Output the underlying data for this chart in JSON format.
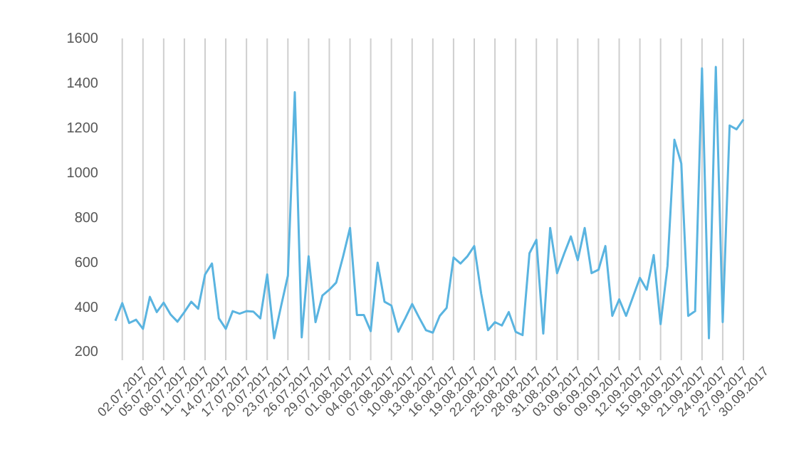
{
  "chart_data": {
    "type": "line",
    "categories": [
      null,
      "02.07.2017",
      null,
      null,
      "05.07.2017",
      null,
      null,
      "08.07.2017",
      null,
      null,
      "11.07.2017",
      null,
      null,
      "14.07.2017",
      null,
      null,
      "17.07.2017",
      null,
      null,
      "20.07.2017",
      null,
      null,
      "23.07.2017",
      null,
      null,
      "26.07.2017",
      null,
      null,
      "29.07.2017",
      null,
      null,
      "01.08.2017",
      null,
      null,
      "04.08.2017",
      null,
      null,
      "07.08.2017",
      null,
      null,
      "10.08.2017",
      null,
      null,
      "13.08.2017",
      null,
      null,
      "16.08.2017",
      null,
      null,
      "19.08.2017",
      null,
      null,
      "22.08.2017",
      null,
      null,
      "25.08.2017",
      null,
      null,
      "28.08.2017",
      null,
      null,
      "31.08.2017",
      null,
      null,
      "03.09.2017",
      null,
      null,
      "06.09.2017",
      null,
      null,
      "09.09.2017",
      null,
      null,
      "12.09.2017",
      null,
      null,
      "15.09.2017",
      null,
      null,
      "18.09.2017",
      null,
      null,
      "21.09.2017",
      null,
      null,
      "24.09.2017",
      null,
      null,
      "27.09.2017",
      null,
      null,
      "30.09.2017"
    ],
    "series": [
      {
        "color": "#5ab4e0",
        "values": [
          338,
          417,
          328,
          343,
          302,
          445,
          377,
          419,
          366,
          334,
          377,
          423,
          392,
          545,
          594,
          349,
          302,
          381,
          370,
          381,
          379,
          349,
          545,
          260,
          402,
          540,
          1360,
          264,
          626,
          332,
          451,
          477,
          509,
          626,
          753,
          364,
          364,
          292,
          598,
          423,
          406,
          289,
          349,
          413,
          353,
          296,
          285,
          360,
          396,
          621,
          594,
          626,
          672,
          460,
          296,
          332,
          317,
          377,
          289,
          274,
          640,
          700,
          281,
          753,
          551,
          636,
          715,
          609,
          753,
          551,
          566,
          672,
          360,
          434,
          360,
          445,
          530,
          477,
          632,
          323,
          583,
          1147,
          1041,
          360,
          381,
          1466,
          260,
          1473,
          332,
          1211,
          1194,
          1238
        ]
      }
    ],
    "ylim": [
      200,
      1600
    ],
    "yticks": [
      200,
      400,
      600,
      800,
      1000,
      1200,
      1400,
      1600
    ],
    "grid": "x",
    "marker": "none",
    "line_style": "solid"
  }
}
